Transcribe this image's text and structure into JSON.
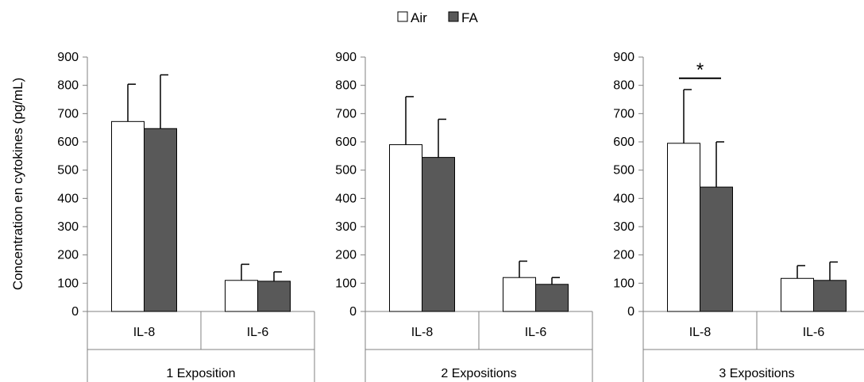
{
  "chart_data": {
    "type": "bar",
    "ylabel": "Concentration en cytokines (pg/mL)",
    "ylim": [
      0,
      900
    ],
    "yticks": [
      0,
      100,
      200,
      300,
      400,
      500,
      600,
      700,
      800,
      900
    ],
    "legend": {
      "position": "top-center",
      "entries": [
        "Air",
        "FA"
      ]
    },
    "colors": {
      "Air": "#ffffff",
      "FA": "#595959",
      "stroke": "#000000",
      "axis": "#808080"
    },
    "panels": [
      {
        "group": "1 Exposition",
        "categories": [
          "IL-8",
          "IL-6"
        ],
        "series": [
          {
            "name": "Air",
            "values": [
              672,
              110
            ],
            "errors": [
              132,
              57
            ]
          },
          {
            "name": "FA",
            "values": [
              647,
              107
            ],
            "errors": [
              190,
              33
            ]
          }
        ],
        "annotations": []
      },
      {
        "group": "2 Expositions",
        "categories": [
          "IL-8",
          "IL-6"
        ],
        "series": [
          {
            "name": "Air",
            "values": [
              590,
              120
            ],
            "errors": [
              170,
              58
            ]
          },
          {
            "name": "FA",
            "values": [
              545,
              96
            ],
            "errors": [
              135,
              24
            ]
          }
        ],
        "annotations": []
      },
      {
        "group": "3 Expositions",
        "categories": [
          "IL-8",
          "IL-6"
        ],
        "series": [
          {
            "name": "Air",
            "values": [
              595,
              117
            ],
            "errors": [
              190,
              45
            ]
          },
          {
            "name": "FA",
            "values": [
              440,
              110
            ],
            "errors": [
              160,
              65
            ]
          }
        ],
        "annotations": [
          {
            "text": "*",
            "category": "IL-8",
            "y": 825
          }
        ]
      }
    ]
  }
}
